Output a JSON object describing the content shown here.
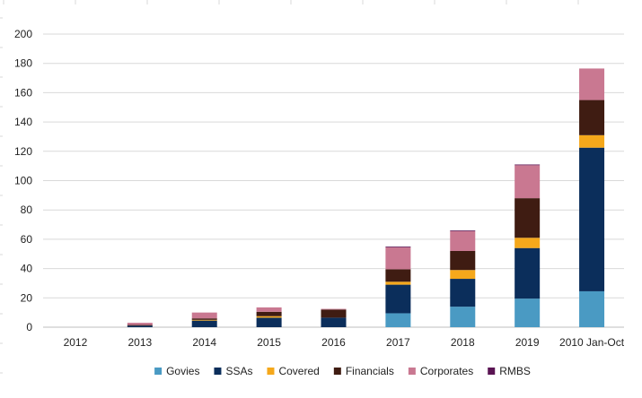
{
  "chart_data": {
    "type": "bar",
    "stacked": true,
    "title": "",
    "xlabel": "",
    "ylabel": "",
    "categories": [
      "2012",
      "2013",
      "2014",
      "2015",
      "2016",
      "2017",
      "2018",
      "2019",
      "2010 Jan-Oct"
    ],
    "yticks": [
      0,
      20,
      40,
      60,
      80,
      100,
      120,
      140,
      160,
      180,
      200
    ],
    "ylim": [
      0,
      200
    ],
    "grid": true,
    "legend_position": "bottom",
    "series": [
      {
        "name": "Govies",
        "color": "#4a9ac3",
        "values": [
          0,
          0,
          0,
          0,
          0,
          9.5,
          14,
          19.5,
          24.5
        ]
      },
      {
        "name": "SSAs",
        "color": "#0b2e5b",
        "values": [
          0,
          1,
          4.5,
          6.5,
          6.5,
          19.5,
          19,
          34.5,
          98
        ]
      },
      {
        "name": "Covered",
        "color": "#f5a81b",
        "values": [
          0,
          0,
          0.5,
          1,
          0,
          2,
          6,
          7,
          8.5
        ]
      },
      {
        "name": "Financials",
        "color": "#3f1c12",
        "values": [
          0,
          0.5,
          1,
          3,
          5.5,
          8.5,
          13,
          27,
          24
        ]
      },
      {
        "name": "Corporates",
        "color": "#c97891",
        "values": [
          0,
          1.5,
          4,
          3,
          0.5,
          15,
          13.5,
          22.5,
          21.5
        ]
      },
      {
        "name": "RMBS",
        "color": "#5a1453",
        "values": [
          0,
          0,
          0,
          0,
          0,
          0.5,
          0.5,
          0.5,
          0
        ]
      }
    ]
  }
}
